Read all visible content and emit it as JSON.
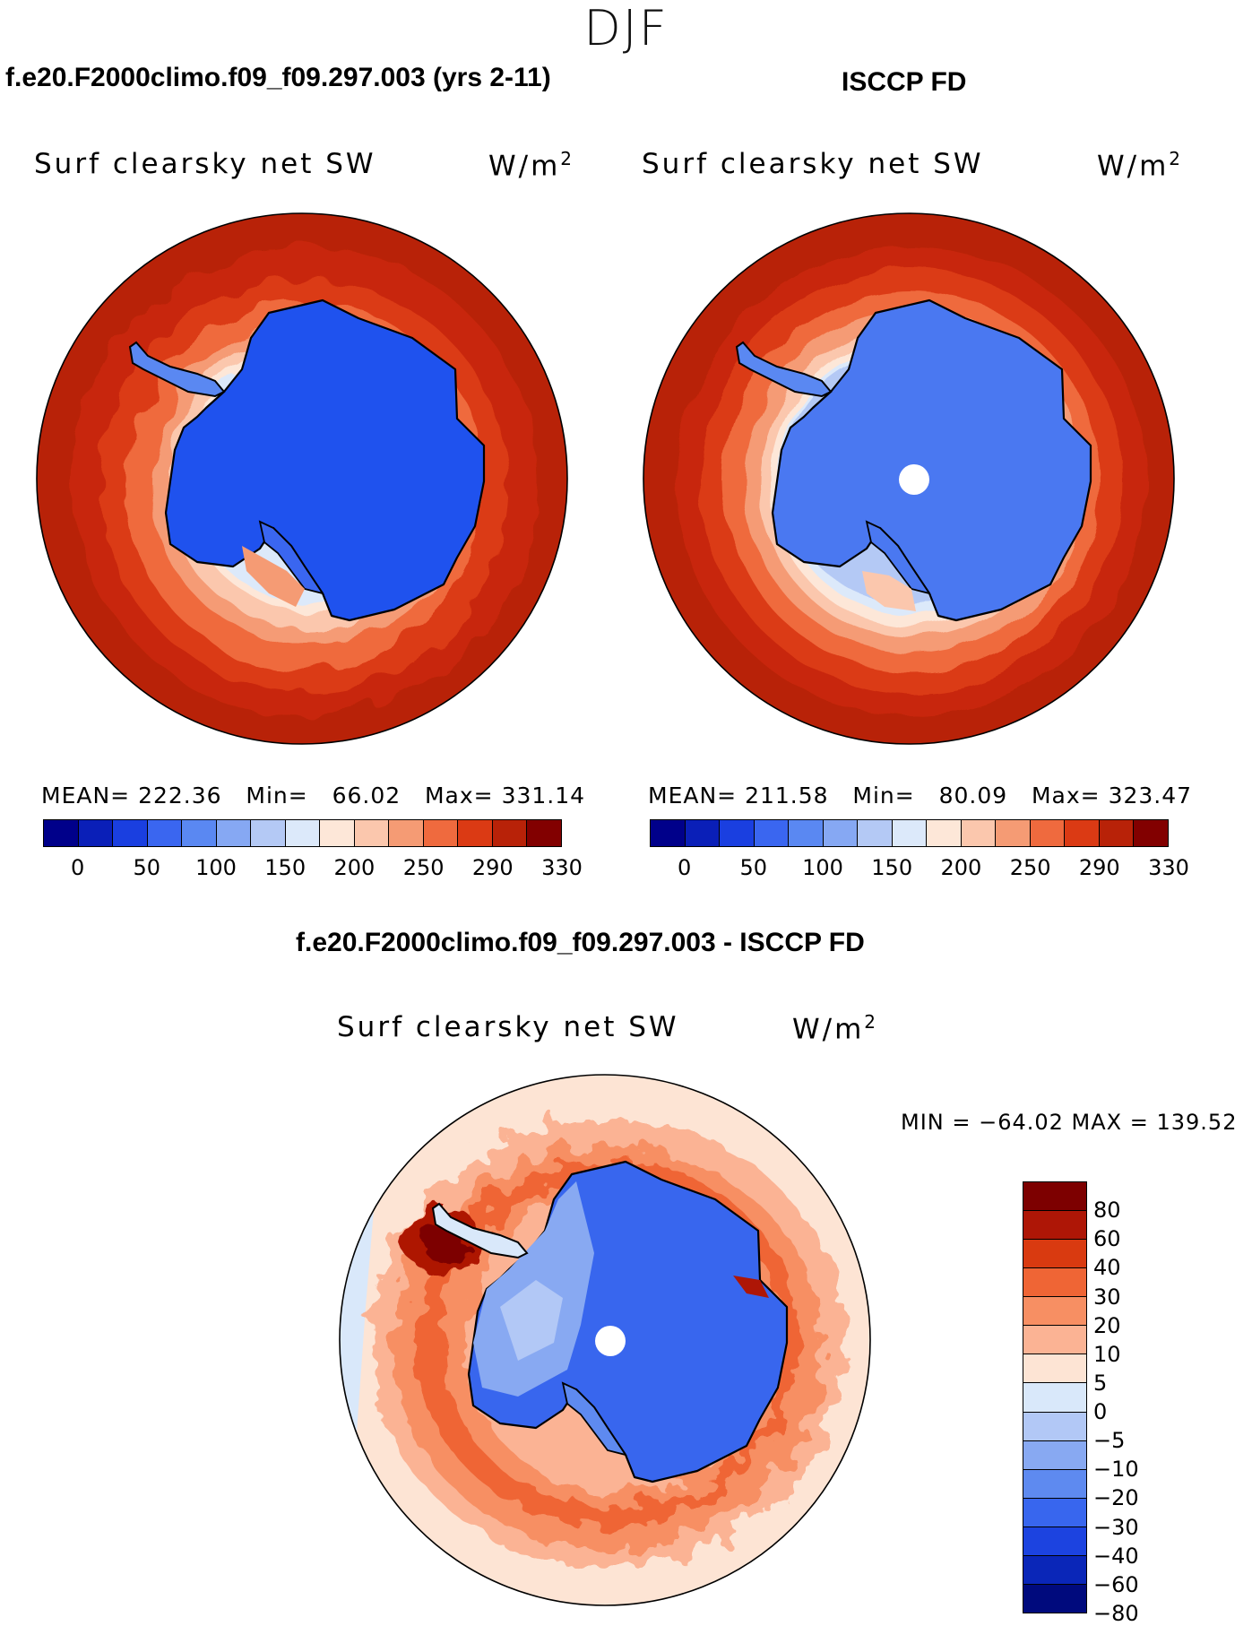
{
  "season": "DJF",
  "panels": [
    {
      "title": "f.e20.F2000climo.f09_f09.297.003 (yrs 2-11)",
      "variable": "Surf clearsky net SW",
      "units": "W/m",
      "units_sup": "2",
      "mean_label": "MEAN=",
      "mean": "222.36",
      "min_label": "Min=",
      "min": "66.02",
      "max_label": "Max=",
      "max": "331.14"
    },
    {
      "title": "ISCCP FD",
      "variable": "Surf clearsky net SW",
      "units": "W/m",
      "units_sup": "2",
      "mean_label": "MEAN=",
      "mean": "211.58",
      "min_label": "Min=",
      "min": "80.09",
      "max_label": "Max=",
      "max": "323.47"
    }
  ],
  "diff": {
    "title": "f.e20.F2000climo.f09_f09.297.003 - ISCCP FD",
    "variable": "Surf clearsky net SW",
    "units": "W/m",
    "units_sup": "2",
    "minmax": "MIN = −64.02  MAX = 139.52"
  },
  "colorbar_abs": {
    "colors": [
      "#00008a",
      "#0a1fb8",
      "#1a3fe0",
      "#3a66f0",
      "#5a88f2",
      "#86a8f3",
      "#b4c9f5",
      "#dce9fa",
      "#fde7d8",
      "#fbc7ad",
      "#f59b74",
      "#ef6a3e",
      "#db3a14",
      "#b82208",
      "#820000"
    ],
    "tick_labels": [
      "0",
      "50",
      "100",
      "150",
      "200",
      "250",
      "290",
      "330"
    ]
  },
  "colorbar_diff": {
    "colors": [
      "#7d0000",
      "#ae1606",
      "#d93a10",
      "#ef6535",
      "#f78f63",
      "#fbb394",
      "#fde4d4",
      "#d9e8fa",
      "#b2c8f6",
      "#88a9f2",
      "#5e8af0",
      "#3866ee",
      "#1c43e0",
      "#0a26b8",
      "#000a7d"
    ],
    "tick_labels": [
      "80",
      "60",
      "40",
      "30",
      "20",
      "10",
      "5",
      "0",
      "−5",
      "−10",
      "−20",
      "−30",
      "−40",
      "−60",
      "−80"
    ]
  }
}
